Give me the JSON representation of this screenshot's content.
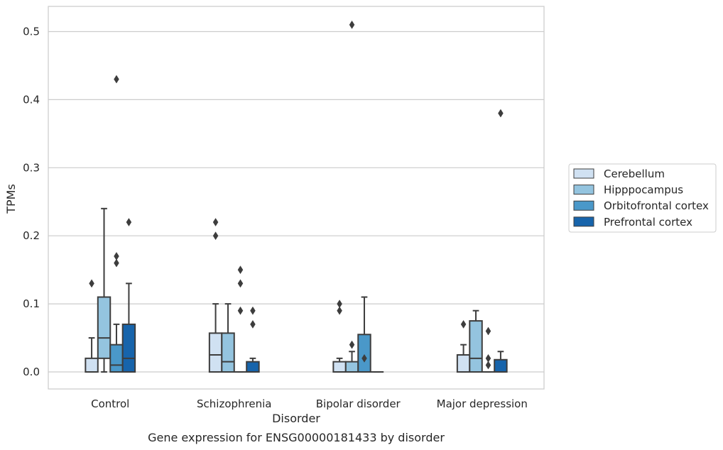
{
  "chart_data": {
    "type": "box",
    "title": "",
    "caption": "Gene expression for ENSG00000181433 by disorder",
    "xlabel": "Disorder",
    "ylabel": "TPMs",
    "categories": [
      "Control",
      "Schizophrenia",
      "Bipolar disorder",
      "Major depression"
    ],
    "ylim": [
      -0.025,
      0.537
    ],
    "yticks": [
      0.0,
      0.1,
      0.2,
      0.3,
      0.4,
      0.5
    ],
    "ytick_labels": [
      "0.0",
      "0.1",
      "0.2",
      "0.3",
      "0.4",
      "0.5"
    ],
    "grid": "horizontal",
    "legend_position": "right",
    "series": [
      {
        "name": "Cerebellum",
        "color": "#d0e1f2",
        "boxes": [
          {
            "whislo": 0.0,
            "q1": 0.0,
            "med": 0.0,
            "q3": 0.02,
            "whishi": 0.05,
            "fliers": [
              0.13
            ]
          },
          {
            "whislo": 0.0,
            "q1": 0.0,
            "med": 0.025,
            "q3": 0.057,
            "whishi": 0.1,
            "fliers": [
              0.2,
              0.22
            ]
          },
          {
            "whislo": 0.0,
            "q1": 0.0,
            "med": 0.0,
            "q3": 0.015,
            "whishi": 0.02,
            "fliers": [
              0.09,
              0.1
            ]
          },
          {
            "whislo": 0.0,
            "q1": 0.0,
            "med": 0.025,
            "q3": 0.025,
            "whishi": 0.04,
            "fliers": [
              0.07
            ]
          }
        ]
      },
      {
        "name": "Hipppocampus",
        "color": "#94c4df",
        "boxes": [
          {
            "whislo": 0.0,
            "q1": 0.02,
            "med": 0.05,
            "q3": 0.11,
            "whishi": 0.24,
            "fliers": []
          },
          {
            "whislo": 0.0,
            "q1": 0.0,
            "med": 0.015,
            "q3": 0.057,
            "whishi": 0.1,
            "fliers": []
          },
          {
            "whislo": 0.0,
            "q1": 0.0,
            "med": 0.0,
            "q3": 0.015,
            "whishi": 0.03,
            "fliers": [
              0.04,
              0.51
            ]
          },
          {
            "whislo": 0.0,
            "q1": 0.0,
            "med": 0.02,
            "q3": 0.075,
            "whishi": 0.09,
            "fliers": []
          }
        ]
      },
      {
        "name": "Orbitofrontal cortex",
        "color": "#4a98c9",
        "boxes": [
          {
            "whislo": 0.0,
            "q1": 0.0,
            "med": 0.01,
            "q3": 0.04,
            "whishi": 0.07,
            "fliers": [
              0.16,
              0.17,
              0.43
            ]
          },
          {
            "whislo": 0.0,
            "q1": 0.0,
            "med": 0.0,
            "q3": 0.0,
            "whishi": 0.0,
            "fliers": [
              0.09,
              0.13,
              0.15
            ]
          },
          {
            "whislo": 0.0,
            "q1": 0.0,
            "med": 0.0,
            "q3": 0.055,
            "whishi": 0.11,
            "fliers": [
              0.02
            ]
          },
          {
            "whislo": 0.0,
            "q1": 0.0,
            "med": 0.0,
            "q3": 0.0,
            "whishi": 0.0,
            "fliers": [
              0.01,
              0.02,
              0.06
            ]
          }
        ]
      },
      {
        "name": "Prefrontal cortex",
        "color": "#1764ab",
        "boxes": [
          {
            "whislo": 0.0,
            "q1": 0.0,
            "med": 0.02,
            "q3": 0.07,
            "whishi": 0.13,
            "fliers": [
              0.22
            ]
          },
          {
            "whislo": 0.0,
            "q1": 0.0,
            "med": 0.0,
            "q3": 0.015,
            "whishi": 0.02,
            "fliers": [
              0.07,
              0.09
            ]
          },
          {
            "whislo": 0.0,
            "q1": 0.0,
            "med": 0.0,
            "q3": 0.0,
            "whishi": 0.0,
            "fliers": []
          },
          {
            "whislo": 0.0,
            "q1": 0.0,
            "med": 0.0,
            "q3": 0.018,
            "whishi": 0.03,
            "fliers": [
              0.38
            ]
          }
        ]
      }
    ]
  }
}
